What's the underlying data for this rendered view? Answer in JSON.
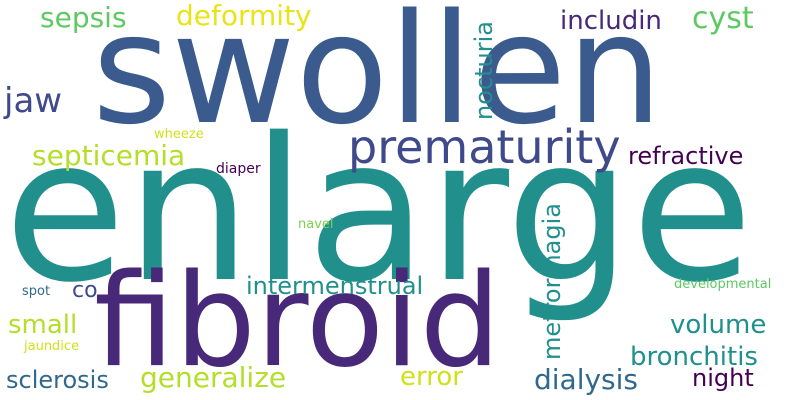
{
  "colors": {
    "background": "#ffffff",
    "blue": "#3b5b8f",
    "teal": "#21908d",
    "purple": "#482878",
    "light_green": "#5ec962",
    "yellow_green": "#b5de2b",
    "dark_purple": "#440154",
    "navy": "#3e4a89",
    "slate": "#31688e"
  },
  "words": {
    "swollen": "swollen",
    "enlarge": "enlarge",
    "fibroid": "fibroid",
    "prematurity": "prematurity",
    "sepsis": "sepsis",
    "deformity": "deformity",
    "jaw": "jaw",
    "nocturia": "nocturia",
    "includin": "includin",
    "cyst": "cyst",
    "refractive": "refractive",
    "septicemia": "septicemia",
    "wheeze": "wheeze",
    "diaper": "diaper",
    "navel": "navel",
    "metrorrhagia": "metrorrhagia",
    "intermenstrual": "intermenstrual",
    "co": "co",
    "developmental": "developmental",
    "spot": "spot",
    "small": "small",
    "jaundice": "jaundice",
    "volume": "volume",
    "bronchitis": "bronchitis",
    "sclerosis": "sclerosis",
    "generalize": "generalize",
    "error": "error",
    "dialysis": "dialysis",
    "night": "night"
  }
}
